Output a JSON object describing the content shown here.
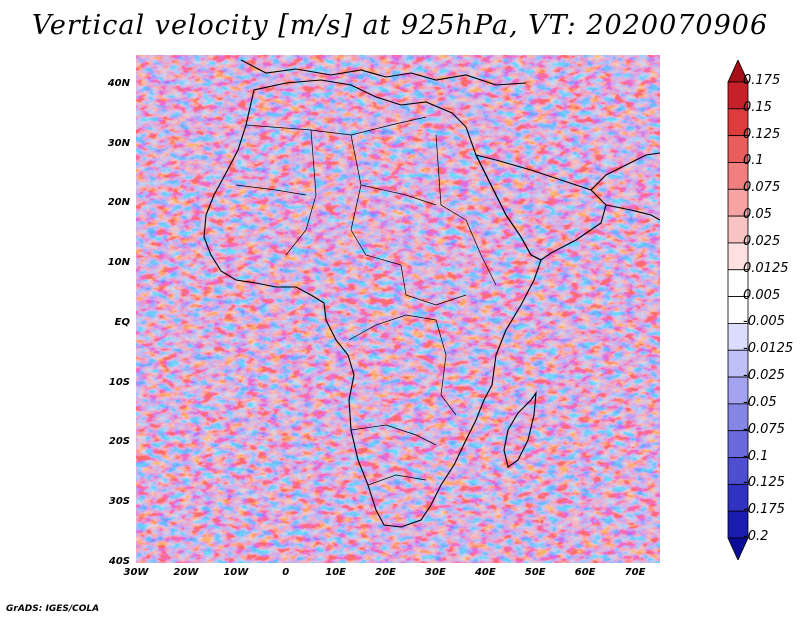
{
  "title": "Vertical velocity [m/s] at 925hPa, VT: 2020070906",
  "credit": "GrADS: IGES/COLA",
  "lat_labels": [
    {
      "value": 40,
      "label": "40N"
    },
    {
      "value": 30,
      "label": "30N"
    },
    {
      "value": 20,
      "label": "20N"
    },
    {
      "value": 10,
      "label": "10N"
    },
    {
      "value": 0,
      "label": "EQ"
    },
    {
      "value": -10,
      "label": "10S"
    },
    {
      "value": -20,
      "label": "20S"
    },
    {
      "value": -30,
      "label": "30S"
    },
    {
      "value": -40,
      "label": "40S"
    }
  ],
  "lon_labels": [
    {
      "value": -30,
      "label": "30W"
    },
    {
      "value": -20,
      "label": "20W"
    },
    {
      "value": -10,
      "label": "10W"
    },
    {
      "value": 0,
      "label": "0"
    },
    {
      "value": 10,
      "label": "10E"
    },
    {
      "value": 20,
      "label": "20E"
    },
    {
      "value": 30,
      "label": "30E"
    },
    {
      "value": 40,
      "label": "40E"
    },
    {
      "value": 50,
      "label": "50E"
    },
    {
      "value": 60,
      "label": "60E"
    },
    {
      "value": 70,
      "label": "70E"
    }
  ],
  "colorbar": {
    "labels": [
      "0.175",
      "0.15",
      "0.125",
      "0.1",
      "0.075",
      "0.05",
      "0.025",
      "0.0125",
      "0.005",
      "-0.005",
      "-0.0125",
      "-0.025",
      "-0.05",
      "-0.075",
      "-0.1",
      "-0.125",
      "-0.175",
      "-0.2"
    ],
    "colors": [
      "#a50f15",
      "#c8202a",
      "#de3c3c",
      "#ea5d5d",
      "#f27f7f",
      "#f7a3a3",
      "#fac3c3",
      "#fde0e0",
      "#ffffff",
      "#ffffff",
      "#dcdcff",
      "#c0c0f8",
      "#a3a3f0",
      "#8686e6",
      "#6a6add",
      "#4e4ed0",
      "#3232c2",
      "#1c1cb0",
      "#0c0c9a"
    ]
  }
}
